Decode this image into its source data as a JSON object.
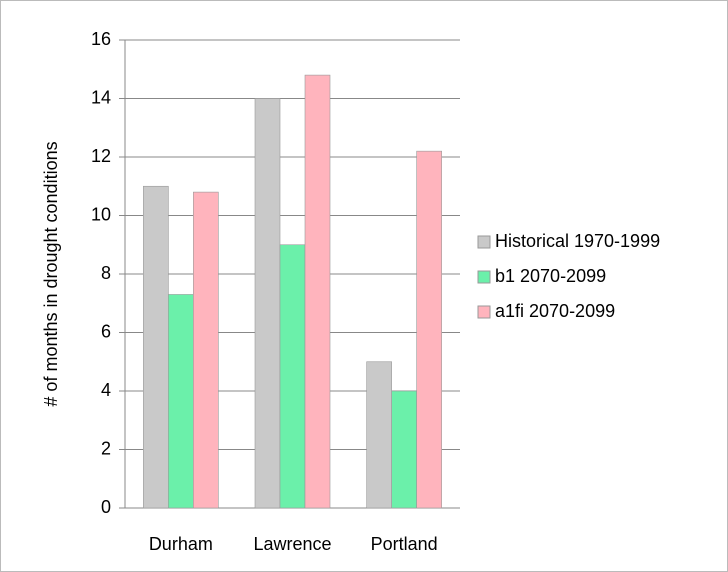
{
  "chart_data": {
    "type": "bar",
    "y_label": "# of months in drought conditions",
    "categories": [
      "Durham",
      "Lawrence",
      "Portland"
    ],
    "series": [
      {
        "name": "Historical 1970-1999",
        "color": "#c9c9c9",
        "values": [
          11,
          14,
          5
        ]
      },
      {
        "name": "b1 2070-2099",
        "color": "#6bf0aa",
        "values": [
          7.3,
          9,
          4
        ]
      },
      {
        "name": "a1fi 2070-2099",
        "color": "#ffb4bd",
        "values": [
          10.8,
          14.8,
          12.2
        ]
      }
    ],
    "ylim": [
      0,
      16
    ],
    "yticks": [
      0,
      2,
      4,
      6,
      8,
      10,
      12,
      14,
      16
    ],
    "grid": true,
    "legend": "right"
  }
}
